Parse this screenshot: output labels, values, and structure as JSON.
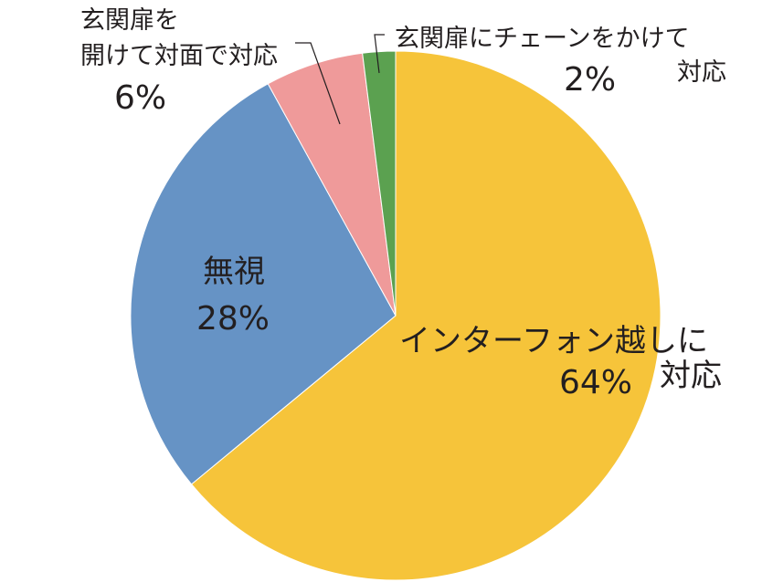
{
  "chart_data": {
    "type": "pie",
    "start_angle_deg": 0,
    "direction": "clockwise",
    "slices": [
      {
        "label_lines": [
          "インターフォン越しに",
          "対応"
        ],
        "value": 64,
        "pct_text": "64%",
        "color": "#f6c43a"
      },
      {
        "label_lines": [
          "無視"
        ],
        "value": 28,
        "pct_text": "28%",
        "color": "#6693c5"
      },
      {
        "label_lines": [
          "玄関扉を",
          "開けて対面で対応"
        ],
        "value": 6,
        "pct_text": "6%",
        "color": "#ef9a9a"
      },
      {
        "label_lines": [
          "玄関扉にチェーンをかけて",
          "対応"
        ],
        "value": 2,
        "pct_text": "2%",
        "color": "#5ba150"
      }
    ]
  }
}
